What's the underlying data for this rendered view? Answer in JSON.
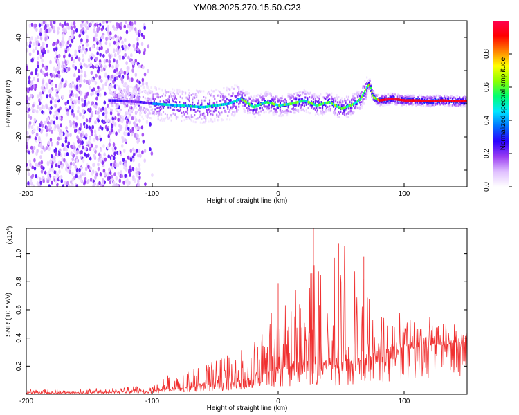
{
  "title": "YM08.2025.270.15.50.C23",
  "chart_data": [
    {
      "type": "heatmap",
      "xlabel": "Height of straight line (km)",
      "ylabel": "Frequency (Hz)",
      "xlim": [
        -200,
        150
      ],
      "ylim": [
        -50,
        50
      ],
      "xticks": [
        -200,
        -100,
        0,
        100
      ],
      "yticks": [
        -40,
        -20,
        0,
        20,
        40
      ],
      "colorbar": {
        "label": "Normalized spectral amplitude",
        "range": [
          0,
          1
        ],
        "ticks": [
          "0.0",
          "0.2",
          "0.4",
          "0.6",
          "0.8"
        ],
        "colors": [
          "#ffffff",
          "#e0c0ff",
          "#9a3cf2",
          "#2a00ff",
          "#0070ff",
          "#00e8ff",
          "#00ff70",
          "#8cff00",
          "#ffff00",
          "#ff8000",
          "#ff0000",
          "#ff0050"
        ]
      },
      "ridge": {
        "x": [
          -130,
          -110,
          -100,
          -80,
          -60,
          -40,
          -30,
          -20,
          -10,
          0,
          10,
          20,
          30,
          40,
          50,
          60,
          65,
          70,
          72,
          75,
          80,
          90,
          100,
          110,
          120,
          130,
          140,
          150
        ],
        "y": [
          2,
          1,
          0,
          -1,
          -2,
          0,
          3,
          -2,
          1,
          -1,
          0,
          2,
          -1,
          1,
          -3,
          0,
          3,
          10,
          12,
          4,
          2,
          3,
          2,
          2,
          1.5,
          2,
          1.5,
          1.5
        ]
      }
    },
    {
      "type": "line",
      "xlabel": "Height of straight line (km)",
      "ylabel": "SNR (10 * v/v)",
      "y_multiplier": "(x10",
      "y_multiplier_exp": "4",
      "y_multiplier_close": ")",
      "xlim": [
        -200,
        150
      ],
      "ylim": [
        0,
        1.18
      ],
      "xticks": [
        -200,
        -100,
        0,
        100
      ],
      "yticks": [
        0.2,
        0.4,
        0.6,
        0.8,
        1.0
      ],
      "ytick_labels": [
        "0.2",
        "0.4",
        "0.6",
        "0.8",
        "1.0"
      ],
      "color": "#f03030",
      "envelope": {
        "x": [
          -200,
          -150,
          -110,
          -100,
          -80,
          -60,
          -40,
          -20,
          -10,
          0,
          10,
          20,
          30,
          40,
          50,
          60,
          70,
          80,
          90,
          100,
          110,
          120,
          130,
          140,
          150
        ],
        "peak": [
          0.04,
          0.04,
          0.06,
          0.1,
          0.17,
          0.22,
          0.28,
          0.35,
          0.55,
          0.62,
          0.8,
          0.8,
          1.18,
          0.88,
          1.1,
          1.0,
          0.78,
          0.68,
          0.6,
          0.6,
          0.52,
          0.58,
          0.52,
          0.5,
          0.45
        ],
        "base": [
          0.01,
          0.01,
          0.02,
          0.02,
          0.04,
          0.06,
          0.08,
          0.1,
          0.14,
          0.18,
          0.18,
          0.2,
          0.2,
          0.2,
          0.2,
          0.22,
          0.25,
          0.28,
          0.3,
          0.32,
          0.33,
          0.35,
          0.35,
          0.36,
          0.37
        ]
      },
      "notable_peaks": [
        {
          "x": 28,
          "y": 1.18
        },
        {
          "x": 48,
          "y": 1.07
        },
        {
          "x": 0,
          "y": 0.79
        },
        {
          "x": 68,
          "y": 0.98
        }
      ]
    }
  ]
}
